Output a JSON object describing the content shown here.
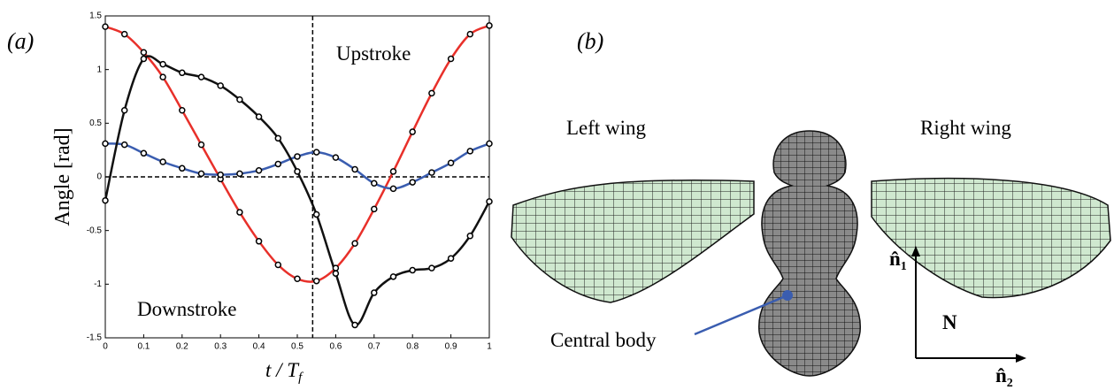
{
  "chart_data": {
    "type": "line",
    "panel_label": "(a)",
    "xlabel": "t / T",
    "xlabel_sub": "f",
    "ylabel": "Angle [rad]",
    "annotations": [
      "Upstroke",
      "Downstroke"
    ],
    "x": [
      0,
      0.05,
      0.1,
      0.15,
      0.2,
      0.25,
      0.3,
      0.35,
      0.4,
      0.45,
      0.5,
      0.55,
      0.6,
      0.65,
      0.7,
      0.75,
      0.8,
      0.85,
      0.9,
      0.95,
      1
    ],
    "series": [
      {
        "color": "#e8302a",
        "values": [
          1.4,
          1.33,
          1.16,
          0.93,
          0.62,
          0.3,
          -0.02,
          -0.33,
          -0.6,
          -0.82,
          -0.95,
          -0.97,
          -0.85,
          -0.62,
          -0.3,
          0.05,
          0.42,
          0.78,
          1.1,
          1.33,
          1.41
        ]
      },
      {
        "color": "#3a5db0",
        "values": [
          0.31,
          0.3,
          0.22,
          0.14,
          0.08,
          0.03,
          0.02,
          0.03,
          0.06,
          0.12,
          0.19,
          0.23,
          0.18,
          0.07,
          -0.06,
          -0.11,
          -0.05,
          0.04,
          0.13,
          0.24,
          0.31
        ]
      },
      {
        "color": "#111111",
        "values": [
          -0.22,
          0.62,
          1.1,
          1.05,
          0.97,
          0.93,
          0.85,
          0.72,
          0.56,
          0.36,
          0.05,
          -0.35,
          -0.9,
          -1.38,
          -1.08,
          -0.93,
          -0.87,
          -0.85,
          -0.76,
          -0.55,
          -0.23
        ]
      }
    ],
    "xlim": [
      0,
      1
    ],
    "xticks": [
      0,
      0.1,
      0.2,
      0.3,
      0.4,
      0.5,
      0.6,
      0.7,
      0.8,
      0.9,
      1
    ],
    "ylim": [
      -1.5,
      1.5
    ],
    "yticks": [
      -1.5,
      -1,
      -0.5,
      0,
      0.5,
      1,
      1.5
    ],
    "vline": 0.54,
    "hline": 0
  },
  "diagram": {
    "panel_label": "(b)",
    "left_wing": "Left wing",
    "right_wing": "Right wing",
    "central_body": "Central body",
    "frame": "N",
    "axis1": "n̂",
    "axis1_sub": "1",
    "axis2": "n̂",
    "axis2_sub": "2"
  }
}
